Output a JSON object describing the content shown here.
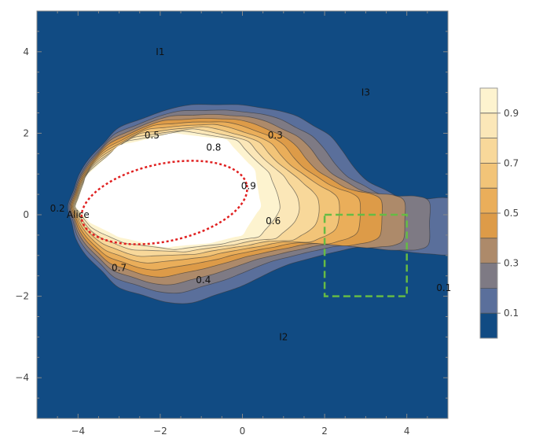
{
  "chart_data": {
    "type": "contour",
    "xlim": [
      -5,
      5
    ],
    "ylim": [
      -5,
      5
    ],
    "xticks": [
      -4,
      -2,
      0,
      2,
      4
    ],
    "yticks": [
      -4,
      -2,
      0,
      2,
      4
    ],
    "xtick_labels": [
      "−4",
      "−2",
      "0",
      "2",
      "4"
    ],
    "ytick_labels": [
      "−4",
      "−2",
      "0",
      "2",
      "4"
    ],
    "colors": {
      "background": "#114b83",
      "levels": [
        "#5a6f9b",
        "#7e7a84",
        "#ad8a6a",
        "#dd9b48",
        "#eaae5a",
        "#f2c478",
        "#f8d89a",
        "#fbe7b8",
        "#fdf3cf",
        "#ffffff"
      ]
    },
    "colorbar": {
      "levels": [
        0.1,
        0.2,
        0.3,
        0.4,
        0.5,
        0.6,
        0.7,
        0.8,
        0.9
      ],
      "tick_values": [
        0.1,
        0.3,
        0.5,
        0.7,
        0.9
      ],
      "tick_labels": [
        "0.1",
        "0.3",
        "0.5",
        "0.7",
        "0.9"
      ]
    },
    "contour_labels": [
      {
        "text": "0.5",
        "x": -2.2,
        "y": 1.95
      },
      {
        "text": "0.3",
        "x": 0.8,
        "y": 1.95
      },
      {
        "text": "0.8",
        "x": -0.7,
        "y": 1.65
      },
      {
        "text": "0.9",
        "x": 0.15,
        "y": 0.7
      },
      {
        "text": "0.2",
        "x": -4.5,
        "y": 0.15
      },
      {
        "text": "0.6",
        "x": 0.75,
        "y": -0.15
      },
      {
        "text": "0.7",
        "x": -3.0,
        "y": -1.3
      },
      {
        "text": "0.4",
        "x": -0.95,
        "y": -1.6
      },
      {
        "text": "0.1",
        "x": 4.9,
        "y": -1.8
      }
    ],
    "annotations": [
      {
        "text": "I1",
        "x": -2.0,
        "y": 4.0
      },
      {
        "text": "I3",
        "x": 3.0,
        "y": 3.0
      },
      {
        "text": "I2",
        "x": 1.0,
        "y": -3.0
      },
      {
        "text": "Alice",
        "x": -4.0,
        "y": 0.0
      }
    ],
    "dashed_ellipse": {
      "cx": -1.9,
      "cy": 0.3,
      "rx": 2.05,
      "ry": 0.95,
      "angle_deg": 12,
      "color": "#e02020"
    },
    "dashed_rect": {
      "x0": 2,
      "y0": -2,
      "x1": 4,
      "y1": 0,
      "color": "#66bb44"
    }
  }
}
